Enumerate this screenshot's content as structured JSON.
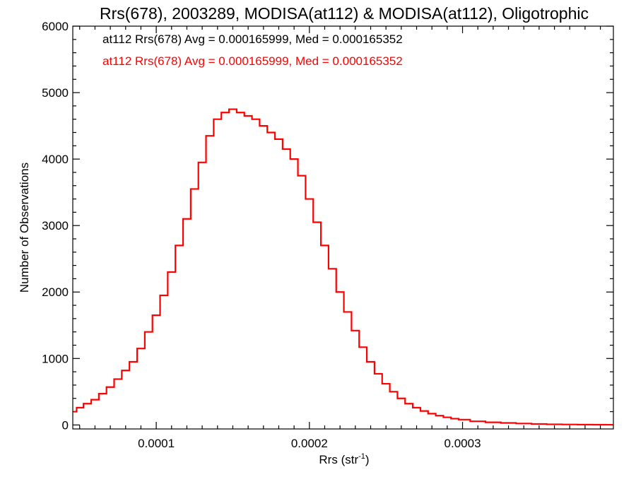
{
  "chart_data": {
    "type": "line",
    "title": "Rrs(678), 2003289, MODISA(at112) & MODISA(at112), Oligotrophic",
    "xlabel": "Rrs (str",
    "xlabel_sup": "-1",
    "xlabel_end": ")",
    "ylabel": "Number of Observations",
    "xlim": [
      4.55e-05,
      0.0003985
    ],
    "ylim": [
      -60,
      6000
    ],
    "xticks": [
      0.0001,
      0.0002,
      0.0003
    ],
    "xtick_labels": [
      "0.0001",
      "0.0002",
      "0.0003"
    ],
    "yticks": [
      0,
      1000,
      2000,
      3000,
      4000,
      5000,
      6000
    ],
    "ytick_labels": [
      "0",
      "1000",
      "2000",
      "3000",
      "4000",
      "5000",
      "6000"
    ],
    "grid": false,
    "step_style": "histogram",
    "annotations": [
      {
        "text": "at112 Rrs(678) Avg = 0.000165999, Med = 0.000165352",
        "color": "#000000"
      },
      {
        "text": "at112 Rrs(678) Avg = 0.000165999, Med = 0.000165352",
        "color": "#ff0000"
      }
    ],
    "series": [
      {
        "color": "#ff0000",
        "x": [
          4.6e-05,
          5e-05,
          5.5e-05,
          6e-05,
          6.5e-05,
          7e-05,
          7.5e-05,
          8e-05,
          8.5e-05,
          9e-05,
          9.5e-05,
          0.0001,
          0.000105,
          0.00011,
          0.000115,
          0.00012,
          0.000125,
          0.00013,
          0.000135,
          0.00014,
          0.000145,
          0.00015,
          0.000155,
          0.00016,
          0.000165,
          0.00017,
          0.000175,
          0.00018,
          0.000185,
          0.00019,
          0.000195,
          0.0002,
          0.000205,
          0.00021,
          0.000215,
          0.00022,
          0.000225,
          0.00023,
          0.000235,
          0.00024,
          0.000245,
          0.00025,
          0.000255,
          0.00026,
          0.000265,
          0.00027,
          0.000275,
          0.00028,
          0.000285,
          0.00029,
          0.000295,
          0.0003,
          0.00031,
          0.00032,
          0.00033,
          0.00034,
          0.00035,
          0.00036,
          0.00037,
          0.00038,
          0.00039,
          0.000398
        ],
        "y": [
          200,
          260,
          320,
          380,
          470,
          570,
          690,
          820,
          950,
          1150,
          1400,
          1650,
          1950,
          2300,
          2700,
          3100,
          3550,
          3950,
          4350,
          4600,
          4700,
          4750,
          4700,
          4650,
          4600,
          4500,
          4400,
          4300,
          4150,
          4000,
          3750,
          3400,
          3050,
          2700,
          2350,
          2000,
          1700,
          1420,
          1170,
          950,
          770,
          620,
          500,
          400,
          320,
          260,
          210,
          170,
          140,
          115,
          95,
          80,
          55,
          40,
          30,
          22,
          15,
          10,
          7,
          5,
          4,
          3
        ]
      }
    ]
  }
}
